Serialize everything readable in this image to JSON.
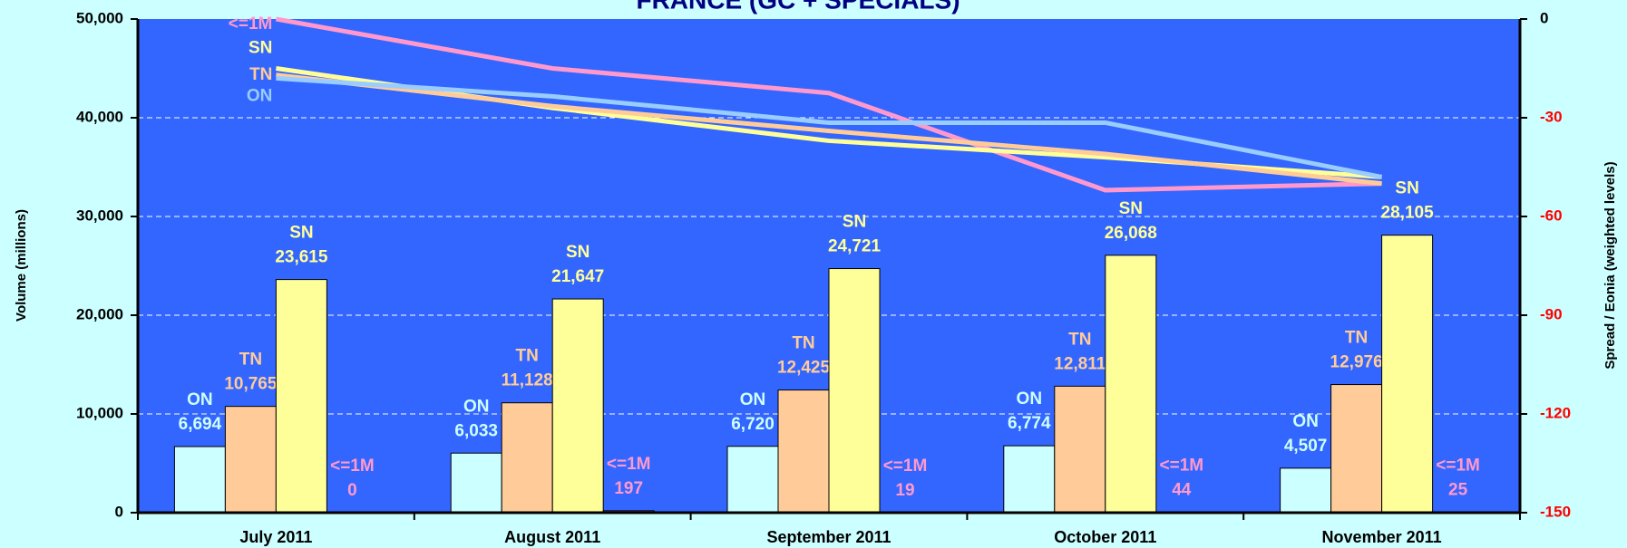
{
  "chart_data": {
    "type": "bar",
    "title": "FRANCE (GC + SPECIALS)",
    "y_label": "Volume (millions)",
    "y2_label": "Spread / Eonia (weighted levels)",
    "categories": [
      "July 2011",
      "August 2011",
      "September 2011",
      "October 2011",
      "November 2011"
    ],
    "series": [
      {
        "name": "ON",
        "color": "#ccffff",
        "label_color": "#ccffff",
        "values": [
          6694,
          6033,
          6720,
          6774,
          4507
        ],
        "value_labels": [
          "6,694",
          "6,033",
          "6,720",
          "6,774",
          "4,507"
        ]
      },
      {
        "name": "TN",
        "color": "#ffcc99",
        "label_color": "#ffcc99",
        "values": [
          10765,
          11128,
          12425,
          12811,
          12976
        ],
        "value_labels": [
          "10,765",
          "11,128",
          "12,425",
          "12,811",
          "12,976"
        ]
      },
      {
        "name": "SN",
        "color": "#ffff99",
        "label_color": "#ffff99",
        "values": [
          23615,
          21647,
          24721,
          26068,
          28105
        ],
        "value_labels": [
          "23,615",
          "21,647",
          "24,721",
          "26,068",
          "28,105"
        ]
      },
      {
        "name": "<=1M",
        "color": "#ff99cc",
        "label_color": "#ff99cc",
        "values": [
          0,
          197,
          19,
          44,
          25
        ],
        "value_labels": [
          "0",
          "197",
          "19",
          "44",
          "25"
        ]
      }
    ],
    "line_series": [
      {
        "name": "<=1M",
        "color": "#ff99cc",
        "axis": "y2",
        "values": [
          0,
          -15,
          -22.5,
          -52,
          -50
        ]
      },
      {
        "name": "SN",
        "color": "#ffff99",
        "axis": "y2",
        "values": [
          -15,
          -27,
          -37,
          -42,
          -48
        ]
      },
      {
        "name": "TN",
        "color": "#ffcc99",
        "axis": "y2",
        "values": [
          -17,
          -26.5,
          -34,
          -41,
          -50
        ]
      },
      {
        "name": "ON",
        "color": "#99ccff",
        "axis": "y2",
        "values": [
          -18,
          -23.5,
          -31.5,
          -31.5,
          -48
        ]
      }
    ],
    "ylim": [
      0,
      50000
    ],
    "yticks": [
      0,
      {
        "value": 10000,
        "label": "10,000"
      },
      {
        "value": 20000,
        "label": "20,000"
      },
      {
        "value": 30000,
        "label": "30,000"
      },
      {
        "value": 40000,
        "label": "40,000"
      },
      {
        "value": 50000,
        "label": "50,000"
      }
    ],
    "y2lim": [
      -150,
      0
    ],
    "y2ticks": [
      0,
      -30,
      -60,
      -90,
      -120,
      -150
    ],
    "grid": true,
    "plot_color": "#3366ff",
    "background": "#ccffff"
  }
}
